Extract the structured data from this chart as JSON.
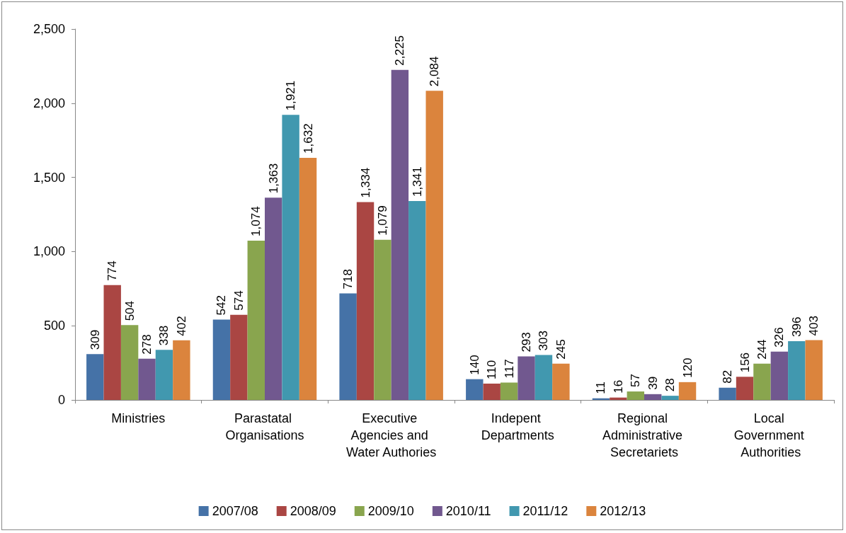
{
  "chart_data": {
    "type": "bar",
    "categories": [
      "Ministries",
      "Parastatal Organisations",
      "Executive Agencies and Water Authories",
      "Indepent Departments",
      "Regional Administrative Secretariets",
      "Local Government Authorities"
    ],
    "series": [
      {
        "name": "2007/08",
        "color": "#4572a7",
        "values": [
          309,
          542,
          718,
          140,
          11,
          82
        ],
        "value_labels": [
          "309",
          "542",
          "718",
          "140",
          "11",
          "82"
        ]
      },
      {
        "name": "2008/09",
        "color": "#aa4643",
        "values": [
          774,
          574,
          1334,
          110,
          16,
          156
        ],
        "value_labels": [
          "774",
          "574",
          "1,334",
          "110",
          "16",
          "156"
        ]
      },
      {
        "name": "2009/10",
        "color": "#89a54e",
        "values": [
          504,
          1074,
          1079,
          117,
          57,
          244
        ],
        "value_labels": [
          "504",
          "1,074",
          "1,079",
          "117",
          "57",
          "244"
        ]
      },
      {
        "name": "2010/11",
        "color": "#71588f",
        "values": [
          278,
          1363,
          2225,
          293,
          39,
          326
        ],
        "value_labels": [
          "278",
          "1,363",
          "2,225",
          "293",
          "39",
          "326"
        ]
      },
      {
        "name": "2011/12",
        "color": "#4198af",
        "values": [
          338,
          1921,
          1341,
          303,
          28,
          396
        ],
        "value_labels": [
          "338",
          "1,921",
          "1,341",
          "303",
          "28",
          "396"
        ]
      },
      {
        "name": "2012/13",
        "color": "#db843d",
        "values": [
          402,
          1632,
          2084,
          245,
          120,
          403
        ],
        "value_labels": [
          "402",
          "1,632",
          "2,084",
          "245",
          "120",
          "403"
        ]
      }
    ],
    "ylim": [
      0,
      2500
    ],
    "yticks": [
      0,
      500,
      {
        "value": 1000,
        "label": "1,000"
      },
      {
        "value": 1500,
        "label": "1,500"
      },
      {
        "value": 2000,
        "label": "2,000"
      },
      {
        "value": 2500,
        "label": "2,500"
      }
    ],
    "grid": false,
    "legend": "bottom"
  }
}
